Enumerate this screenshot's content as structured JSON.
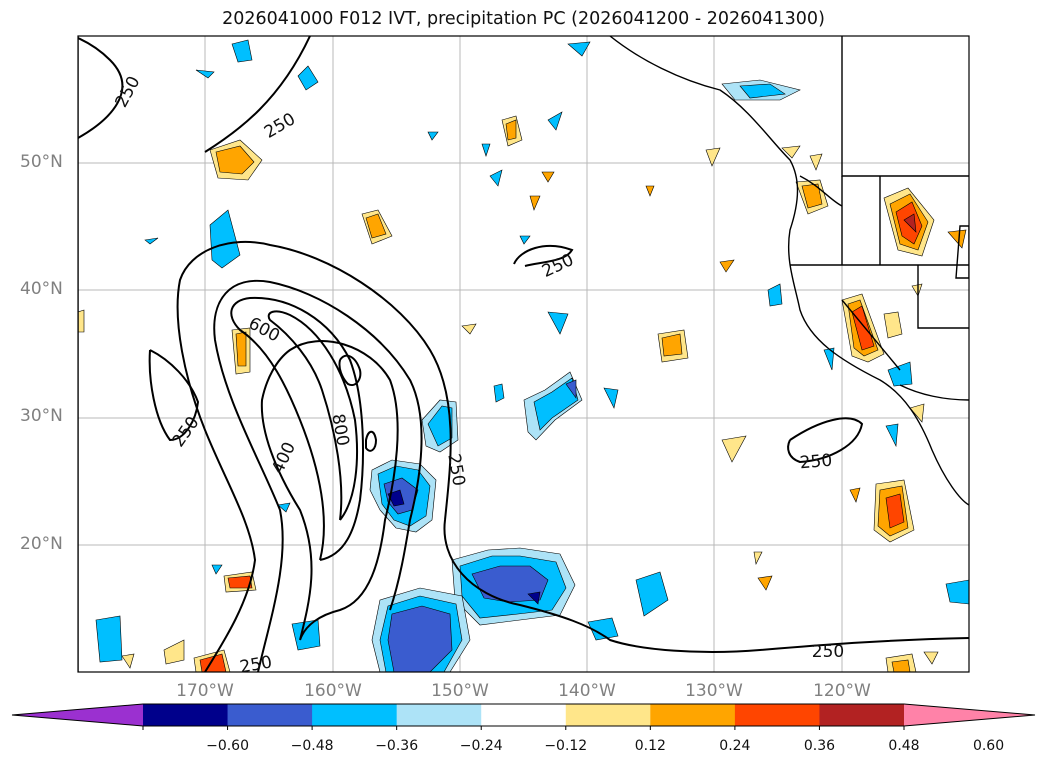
{
  "title": "2026041000 F012 IVT, precipitation PC (2026041200 - 2026041300)",
  "map": {
    "projection": "PlateCarree",
    "lon_range": [
      -180,
      -110
    ],
    "lat_range": [
      10,
      60
    ],
    "lat_labels": [
      "50°N",
      "40°N",
      "30°N",
      "20°N"
    ],
    "lat_values": [
      50,
      40,
      30,
      20
    ],
    "lon_labels": [
      "170°W",
      "160°W",
      "150°W",
      "140°W",
      "130°W",
      "120°W"
    ],
    "lon_values": [
      -170,
      -160,
      -150,
      -140,
      -130,
      -120
    ],
    "ivt_contour_labels": [
      "250",
      "250",
      "250",
      "250",
      "250",
      "250",
      "250",
      "250",
      "600",
      "800",
      "400"
    ],
    "features": [
      "coastlines",
      "state-borders",
      "country-borders",
      "gridlines"
    ]
  },
  "colorbar": {
    "ticks": [
      "−0.60",
      "−0.48",
      "−0.36",
      "−0.24",
      "−0.12",
      "0.12",
      "0.24",
      "0.36",
      "0.48",
      "0.60"
    ],
    "colors": [
      "#9b30d0",
      "#00008b",
      "#3a5ccf",
      "#00bfff",
      "#ade3f7",
      "#ffffff",
      "#ffe68a",
      "#ffa500",
      "#ff4500",
      "#b22222",
      "#ff82a8"
    ],
    "extend": "both"
  },
  "chart_data": {
    "type": "heatmap",
    "title": "2026041000 F012 IVT, precipitation PC (2026041200 - 2026041300)",
    "field_fill": "precipitation PC",
    "field_contour": "IVT",
    "contour_levels": [
      250,
      400,
      600,
      800
    ],
    "levels": [
      -0.6,
      -0.48,
      -0.36,
      -0.24,
      -0.12,
      0.12,
      0.24,
      0.36,
      0.48,
      0.6
    ],
    "xlim": [
      -180,
      -110
    ],
    "ylim": [
      10,
      60
    ]
  }
}
